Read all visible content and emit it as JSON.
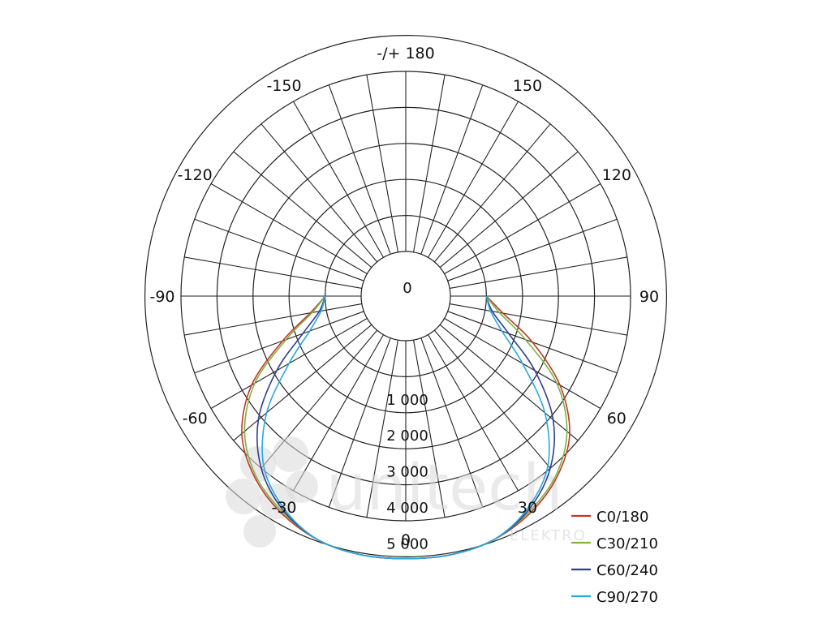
{
  "chart_data": {
    "type": "polar-line",
    "title": "",
    "angle_labels": [
      {
        "angle": 180,
        "text": "-/+ 180"
      },
      {
        "angle": -150,
        "text": "-150"
      },
      {
        "angle": 150,
        "text": "150"
      },
      {
        "angle": -120,
        "text": "-120"
      },
      {
        "angle": 120,
        "text": "120"
      },
      {
        "angle": -90,
        "text": "-90"
      },
      {
        "angle": 90,
        "text": "90"
      },
      {
        "angle": -60,
        "text": "-60"
      },
      {
        "angle": 60,
        "text": "60"
      },
      {
        "angle": -30,
        "text": "-30"
      },
      {
        "angle": 30,
        "text": "30"
      },
      {
        "angle": 0,
        "text": "0"
      }
    ],
    "radial_labels": [
      {
        "value": 0,
        "text": "0"
      },
      {
        "value": 1000,
        "text": "1 000"
      },
      {
        "value": 2000,
        "text": "2 000"
      },
      {
        "value": 3000,
        "text": "3 000"
      },
      {
        "value": 4000,
        "text": "4 000"
      },
      {
        "value": 5000,
        "text": "5 000"
      }
    ],
    "radial_range": [
      0,
      5000
    ],
    "inner_offset": 1000,
    "gridline_step_deg": 10,
    "legend_position": "bottom-right",
    "series": [
      {
        "name": "C0/180",
        "color": "#c0392b",
        "points": [
          [
            -90,
            0
          ],
          [
            -80,
            450
          ],
          [
            -70,
            1400
          ],
          [
            -60,
            2700
          ],
          [
            -50,
            3700
          ],
          [
            -40,
            4300
          ],
          [
            -30,
            4700
          ],
          [
            -20,
            4950
          ],
          [
            -10,
            5050
          ],
          [
            0,
            5050
          ],
          [
            10,
            5050
          ],
          [
            20,
            4950
          ],
          [
            30,
            4700
          ],
          [
            40,
            4300
          ],
          [
            50,
            3700
          ],
          [
            60,
            2700
          ],
          [
            70,
            1500
          ],
          [
            80,
            500
          ],
          [
            90,
            0
          ]
        ]
      },
      {
        "name": "C30/210",
        "color": "#7cb342",
        "points": [
          [
            -90,
            0
          ],
          [
            -80,
            400
          ],
          [
            -70,
            1300
          ],
          [
            -60,
            2600
          ],
          [
            -50,
            3600
          ],
          [
            -40,
            4250
          ],
          [
            -30,
            4650
          ],
          [
            -20,
            4950
          ],
          [
            -10,
            5050
          ],
          [
            0,
            5050
          ],
          [
            10,
            5050
          ],
          [
            20,
            4950
          ],
          [
            30,
            4650
          ],
          [
            40,
            4250
          ],
          [
            50,
            3600
          ],
          [
            60,
            2600
          ],
          [
            70,
            1300
          ],
          [
            80,
            400
          ],
          [
            90,
            0
          ]
        ]
      },
      {
        "name": "C60/240",
        "color": "#2e3f8f",
        "points": [
          [
            -90,
            0
          ],
          [
            -80,
            200
          ],
          [
            -70,
            800
          ],
          [
            -60,
            1900
          ],
          [
            -50,
            3100
          ],
          [
            -40,
            4000
          ],
          [
            -30,
            4600
          ],
          [
            -20,
            4950
          ],
          [
            -10,
            5050
          ],
          [
            0,
            5050
          ],
          [
            10,
            5050
          ],
          [
            20,
            4950
          ],
          [
            30,
            4600
          ],
          [
            40,
            4000
          ],
          [
            50,
            3100
          ],
          [
            60,
            1900
          ],
          [
            70,
            800
          ],
          [
            80,
            200
          ],
          [
            90,
            0
          ]
        ]
      },
      {
        "name": "C90/270",
        "color": "#29a8e0",
        "points": [
          [
            -90,
            0
          ],
          [
            -80,
            150
          ],
          [
            -70,
            600
          ],
          [
            -60,
            1500
          ],
          [
            -50,
            2800
          ],
          [
            -40,
            3900
          ],
          [
            -30,
            4550
          ],
          [
            -20,
            4950
          ],
          [
            -10,
            5050
          ],
          [
            0,
            5050
          ],
          [
            10,
            5050
          ],
          [
            20,
            4950
          ],
          [
            30,
            4550
          ],
          [
            40,
            3900
          ],
          [
            50,
            2800
          ],
          [
            60,
            1500
          ],
          [
            70,
            600
          ],
          [
            80,
            150
          ],
          [
            90,
            0
          ]
        ]
      }
    ]
  },
  "watermark": {
    "brand": "unitech",
    "sub": "ELEKTRO"
  }
}
